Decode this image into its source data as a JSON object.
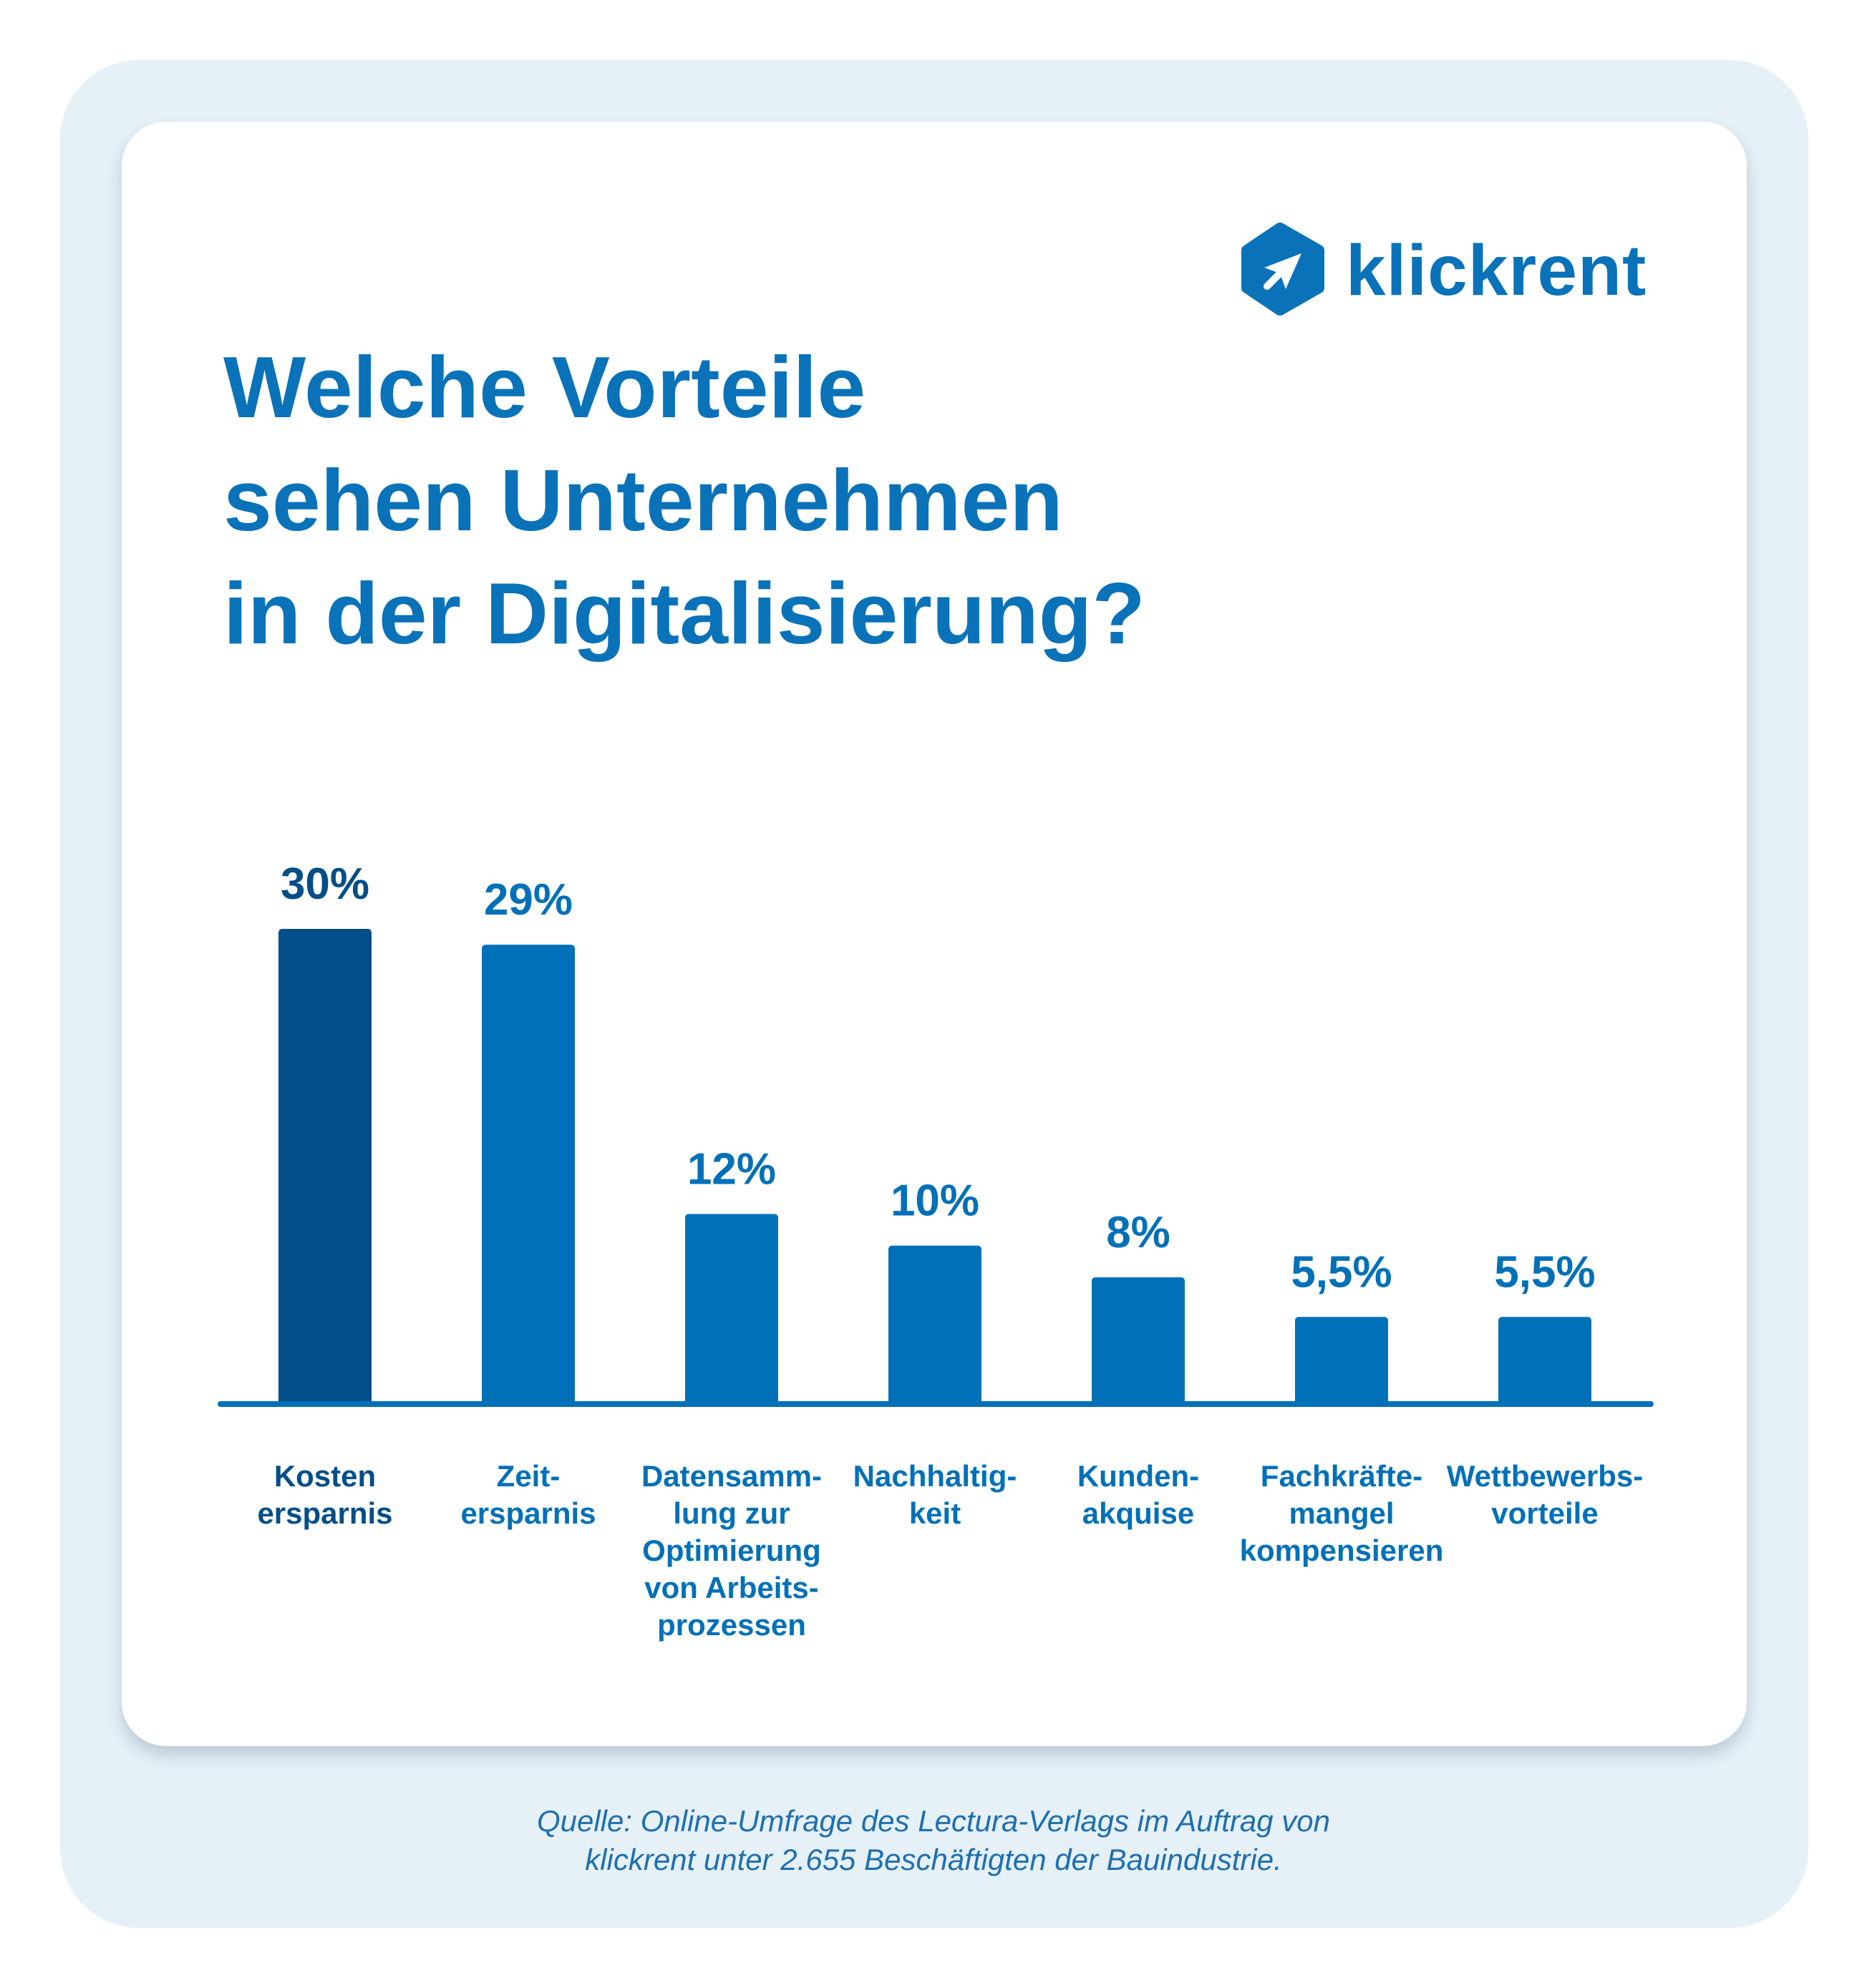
{
  "brand": {
    "name": "klickrent",
    "color": "#0a72b9",
    "icon": "hexagon-arrow-icon"
  },
  "title_lines": [
    "Welche Vorteile",
    "sehen Unternehmen",
    "in der Digitalisierung?"
  ],
  "colors": {
    "highlight_bar": "#014e88",
    "bar": "#0070b8",
    "axis": "#0070b8",
    "background_panel": "#e5f0f7"
  },
  "chart_data": {
    "type": "bar",
    "categories": [
      [
        "Kosten",
        "ersparnis"
      ],
      [
        "Zeit-",
        "ersparnis"
      ],
      [
        "Datensamm-",
        "lung zur",
        "Optimierung",
        "von Arbeits-",
        "prozessen"
      ],
      [
        "Nachhaltig-",
        "keit"
      ],
      [
        "Kunden-",
        "akquise"
      ],
      [
        "Fachkräfte-",
        "mangel",
        "kompensieren"
      ],
      [
        "Wettbewerbs-",
        "vorteile"
      ]
    ],
    "values": [
      30,
      29,
      12,
      10,
      8,
      5.5,
      5.5
    ],
    "value_labels": [
      "30%",
      "29%",
      "12%",
      "10%",
      "8%",
      "5,5%",
      "5,5%"
    ],
    "highlighted_index": 0,
    "ylim": [
      0,
      30
    ],
    "grid": false,
    "legend": "none"
  },
  "source_lines": [
    "Quelle: Online-Umfrage des Lectura-Verlags im Auftrag von",
    "klickrent unter 2.655 Beschäftigten der Bauindustrie."
  ]
}
